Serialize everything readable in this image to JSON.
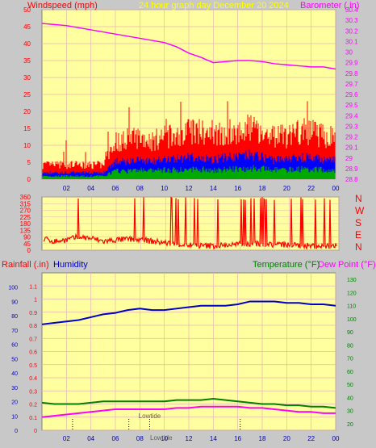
{
  "header": {
    "left_label": "Windspeed (mph)",
    "center_label": "24 hour graph day   December 20 2024",
    "right_label": "Barometer (.in)"
  },
  "direction_labels": [
    "N",
    "W",
    "S",
    "E",
    "N"
  ],
  "bottom_header": {
    "rain_label": "Rainfall (.in)",
    "humidity_label": "Humidity",
    "temp_label": "Temperature (°F)",
    "dew_label": "Dew Point (°F)"
  },
  "colors": {
    "panel": "#ffffa0",
    "grid": "#e8b4b4",
    "wind_speed": "#ff0000",
    "wind_gust_dir": "#ff0000",
    "wind_avg": "#0000ff",
    "wind_low": "#00aa00",
    "barometer": "#ff00ff",
    "humidity": "#0000c8",
    "temperature": "#008000",
    "dew_point": "#ff00ff",
    "direction": "#ff0000"
  },
  "chart_data": [
    {
      "type": "line",
      "title": "24 hour graph day   December 20 2024",
      "xlabel": "",
      "x_ticks": [
        "02",
        "04",
        "06",
        "08",
        "10",
        "12",
        "14",
        "16",
        "18",
        "20",
        "22",
        "00"
      ],
      "ylabel": "Windspeed (mph)",
      "ylim": [
        0,
        50
      ],
      "y_ticks": [
        0,
        5,
        10,
        15,
        20,
        25,
        30,
        35,
        40,
        45,
        50
      ],
      "y2label": "Barometer (.in)",
      "y2lim": [
        28.8,
        30.4
      ],
      "y2_ticks": [
        "28.8",
        "28.9",
        "29",
        "29.1",
        "29.2",
        "29.3",
        "29.4",
        "29.5",
        "29.6",
        "29.7",
        "29.8",
        "29.9",
        "30",
        "30.1",
        "30.2",
        "30.3",
        "30.4"
      ],
      "x_hours": [
        0,
        1,
        2,
        3,
        4,
        5,
        6,
        7,
        8,
        9,
        10,
        11,
        12,
        13,
        14,
        15,
        16,
        17,
        18,
        19,
        20,
        21,
        22,
        23,
        24
      ],
      "series": [
        {
          "name": "Windspeed (mph)",
          "axis": "left",
          "values": [
            3,
            3,
            3,
            3,
            3,
            3,
            8,
            8,
            9,
            8,
            9,
            9,
            10,
            10,
            9,
            10,
            10,
            11,
            10,
            9,
            9,
            10,
            10,
            9,
            9
          ]
        },
        {
          "name": "Barometer (.in)",
          "axis": "right",
          "values": [
            30.27,
            30.26,
            30.25,
            30.23,
            30.21,
            30.19,
            30.17,
            30.15,
            30.13,
            30.11,
            30.09,
            30.05,
            29.99,
            29.95,
            29.9,
            29.91,
            29.92,
            29.92,
            29.91,
            29.89,
            29.88,
            29.87,
            29.86,
            29.86,
            29.84
          ]
        }
      ],
      "max_gust": 23
    },
    {
      "type": "line",
      "ylabel": "",
      "ylim": [
        0,
        360
      ],
      "y_ticks": [
        0,
        45,
        90,
        135,
        180,
        225,
        270,
        315,
        360
      ],
      "x_ticks": [],
      "series": [
        {
          "name": "",
          "values": [
            80,
            60,
            70,
            90,
            80,
            60,
            70,
            75,
            70,
            60,
            50,
            40,
            35,
            30,
            30,
            35,
            40,
            45,
            40,
            40,
            35,
            30,
            30,
            25,
            30
          ]
        }
      ]
    },
    {
      "type": "line",
      "x_ticks": [
        "02",
        "04",
        "06",
        "08",
        "10",
        "12",
        "14",
        "16",
        "18",
        "20",
        "22",
        "00"
      ],
      "ylabel": "Rainfall (.in)",
      "ylim": [
        0,
        1.2
      ],
      "y_ticks": [
        "0",
        "0.1",
        "0.2",
        "0.3",
        "0.4",
        "0.5",
        "0.6",
        "0.7",
        "0.8",
        "0.9",
        "1",
        "1.1"
      ],
      "y_humidity_ticks": [
        0,
        10,
        20,
        30,
        40,
        50,
        60,
        70,
        80,
        90,
        100
      ],
      "y2label": "Temperature (°F)",
      "y2lim": [
        15,
        135
      ],
      "y2_ticks": [
        20,
        30,
        40,
        50,
        60,
        70,
        80,
        90,
        100,
        110,
        120,
        130
      ],
      "x_hours": [
        0,
        1,
        2,
        3,
        4,
        5,
        6,
        7,
        8,
        9,
        10,
        11,
        12,
        13,
        14,
        15,
        16,
        17,
        18,
        19,
        20,
        21,
        22,
        23,
        24
      ],
      "series": [
        {
          "name": "Humidity",
          "values": [
            74,
            75,
            76,
            77,
            79,
            81,
            82,
            84,
            85,
            84,
            84,
            85,
            86,
            87,
            87,
            87,
            88,
            90,
            90,
            90,
            89,
            89,
            88,
            88,
            87
          ]
        },
        {
          "name": "Temperature (°F)",
          "values": [
            36,
            35,
            35,
            35,
            36,
            37,
            37,
            37,
            37,
            37,
            37,
            38,
            38,
            38,
            39,
            38,
            37,
            36,
            35,
            35,
            34,
            34,
            33,
            33,
            32
          ]
        },
        {
          "name": "Dew Point (°F)",
          "values": [
            25,
            26,
            27,
            28,
            29,
            30,
            31,
            31,
            31,
            31,
            31,
            32,
            32,
            33,
            33,
            33,
            33,
            32,
            32,
            31,
            30,
            29,
            29,
            28,
            28
          ]
        }
      ],
      "tide_markers": [
        {
          "hour": 2.5,
          "label": ""
        },
        {
          "hour": 7.1,
          "label": ""
        },
        {
          "hour": 8.8,
          "label": "Lowtide"
        },
        {
          "hour": 16.2,
          "label": ""
        }
      ],
      "tide_bottom_label": "Lowtide"
    }
  ]
}
